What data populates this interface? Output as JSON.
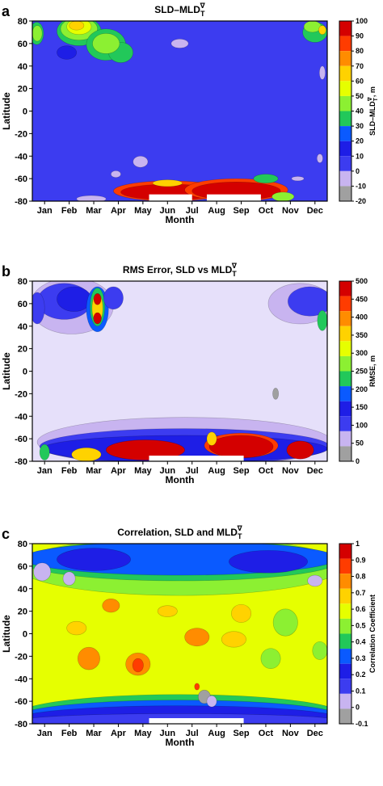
{
  "chart_data": [
    {
      "type": "heatmap",
      "panel_label": "a",
      "title_main": "SLD–MLD",
      "title_sub": "T",
      "title_sup": "∇",
      "xlabel": "Month",
      "ylabel": "Latitude",
      "months": [
        "Jan",
        "Feb",
        "Mar",
        "Apr",
        "May",
        "Jun",
        "Jul",
        "Aug",
        "Sep",
        "Oct",
        "Nov",
        "Dec"
      ],
      "yticks": [
        80,
        60,
        40,
        20,
        0,
        -20,
        -40,
        -60,
        -80
      ],
      "ylim": [
        -80,
        80
      ],
      "colorbar_label": "SLD–MLD",
      "colorbar_label_sub": "T",
      "colorbar_label_sup": "∇",
      "colorbar_unit": ", m",
      "colorbar_ticks": [
        "100",
        "90",
        "80",
        "70",
        "60",
        "50",
        "40",
        "30",
        "20",
        "10",
        "0",
        "-10",
        "-20"
      ],
      "colorbar_colors": [
        "#d40000",
        "#ff3c00",
        "#ff8c00",
        "#ffd200",
        "#e6ff00",
        "#8cf032",
        "#22c85a",
        "#0a5aff",
        "#1e1ee6",
        "#3c3cf0",
        "#c8b4f0",
        "#a0a0a0"
      ],
      "background_color": "#3c3cf0",
      "blobs": [
        {
          "x": 0.18,
          "y": 69,
          "w": 0.28,
          "h": 10,
          "c": "#22c85a"
        },
        {
          "x": 0.2,
          "y": 69,
          "w": 0.2,
          "h": 7,
          "c": "#8cf032"
        },
        {
          "x": 1.9,
          "y": 71,
          "w": 0.9,
          "h": 13,
          "c": "#22c85a"
        },
        {
          "x": 1.9,
          "y": 73,
          "w": 0.75,
          "h": 10,
          "c": "#8cf032"
        },
        {
          "x": 1.9,
          "y": 75,
          "w": 0.5,
          "h": 7,
          "c": "#e6ff00"
        },
        {
          "x": 1.8,
          "y": 76,
          "w": 0.3,
          "h": 4,
          "c": "#ffd200"
        },
        {
          "x": 3.0,
          "y": 59,
          "w": 0.8,
          "h": 14,
          "c": "#22c85a"
        },
        {
          "x": 3.6,
          "y": 52,
          "w": 0.5,
          "h": 9,
          "c": "#22c85a"
        },
        {
          "x": 3.0,
          "y": 60,
          "w": 0.55,
          "h": 9,
          "c": "#8cf032"
        },
        {
          "x": 1.4,
          "y": 52,
          "w": 0.4,
          "h": 6,
          "c": "#1e1ee6"
        },
        {
          "x": 6.0,
          "y": 60,
          "w": 0.35,
          "h": 4,
          "c": "#c8b4f0"
        },
        {
          "x": 11.5,
          "y": 70,
          "w": 0.5,
          "h": 9,
          "c": "#22c85a"
        },
        {
          "x": 11.4,
          "y": 75,
          "w": 0.35,
          "h": 5,
          "c": "#8cf032"
        },
        {
          "x": 11.8,
          "y": 72,
          "w": 0.15,
          "h": 4,
          "c": "#ffd200"
        },
        {
          "x": 11.8,
          "y": 34,
          "w": 0.12,
          "h": 6,
          "c": "#c8b4f0"
        },
        {
          "x": 4.4,
          "y": -45,
          "w": 0.3,
          "h": 5,
          "c": "#c8b4f0"
        },
        {
          "x": 3.4,
          "y": -56,
          "w": 0.2,
          "h": 3,
          "c": "#c8b4f0"
        },
        {
          "x": 2.4,
          "y": -78,
          "w": 0.6,
          "h": 3,
          "c": "#c8b4f0"
        },
        {
          "x": 5.6,
          "y": -71,
          "w": 2.3,
          "h": 9,
          "c": "#ff3c00"
        },
        {
          "x": 5.6,
          "y": -72,
          "w": 2.0,
          "h": 7,
          "c": "#d40000"
        },
        {
          "x": 8.3,
          "y": -70,
          "w": 2.1,
          "h": 10,
          "c": "#ff3c00"
        },
        {
          "x": 8.3,
          "y": -71,
          "w": 1.8,
          "h": 8,
          "c": "#d40000"
        },
        {
          "x": 5.5,
          "y": -64,
          "w": 0.6,
          "h": 3,
          "c": "#ffd200"
        },
        {
          "x": 9.5,
          "y": -60,
          "w": 0.5,
          "h": 4,
          "c": "#22c85a"
        },
        {
          "x": 10.8,
          "y": -60,
          "w": 0.25,
          "h": 2,
          "c": "#c8b4f0"
        },
        {
          "x": 11.7,
          "y": -42,
          "w": 0.12,
          "h": 4,
          "c": "#c8b4f0"
        },
        {
          "x": 10.2,
          "y": -76,
          "w": 0.45,
          "h": 4,
          "c": "#8cf032"
        }
      ],
      "masks": [
        {
          "x0": 4.75,
          "x1": 6.5,
          "y0": -80,
          "y1": -74
        },
        {
          "x0": 7.1,
          "x1": 9.3,
          "y0": -80,
          "y1": -74
        }
      ]
    },
    {
      "type": "heatmap",
      "panel_label": "b",
      "title_main": "RMS Error, SLD vs MLD",
      "title_sub": "T",
      "title_sup": "∇",
      "xlabel": "Month",
      "ylabel": "Latitude",
      "months": [
        "Jan",
        "Feb",
        "Mar",
        "Apr",
        "May",
        "Jun",
        "Jul",
        "Aug",
        "Sep",
        "Oct",
        "Nov",
        "Dec"
      ],
      "yticks": [
        80,
        60,
        40,
        20,
        0,
        -20,
        -40,
        -60,
        -80
      ],
      "ylim": [
        -80,
        80
      ],
      "colorbar_label": "RMSE, m",
      "colorbar_label_sub": "",
      "colorbar_label_sup": "",
      "colorbar_unit": "",
      "colorbar_ticks": [
        "500",
        "450",
        "400",
        "350",
        "300",
        "250",
        "200",
        "150",
        "100",
        "50",
        "0"
      ],
      "colorbar_colors": [
        "#d40000",
        "#ff3c00",
        "#ff8c00",
        "#ffd200",
        "#e6ff00",
        "#8cf032",
        "#22c85a",
        "#0a5aff",
        "#1e1ee6",
        "#3c3cf0",
        "#c8b4f0",
        "#a0a0a0"
      ],
      "background_color": "#e6e0fa",
      "blobs": [
        {
          "x": 1.6,
          "y": 58,
          "w": 1.7,
          "h": 25,
          "c": "#c8b4f0"
        },
        {
          "x": 1.3,
          "y": 62,
          "w": 1.1,
          "h": 16,
          "c": "#3c3cf0"
        },
        {
          "x": 1.7,
          "y": 64,
          "w": 0.7,
          "h": 11,
          "c": "#1e1ee6"
        },
        {
          "x": 2.65,
          "y": 55,
          "w": 0.45,
          "h": 20,
          "c": "#0a5aff"
        },
        {
          "x": 2.65,
          "y": 57,
          "w": 0.3,
          "h": 17,
          "c": "#22c85a"
        },
        {
          "x": 2.65,
          "y": 56,
          "w": 0.22,
          "h": 13,
          "c": "#ffd200"
        },
        {
          "x": 2.65,
          "y": 64,
          "w": 0.15,
          "h": 5,
          "c": "#d40000"
        },
        {
          "x": 2.65,
          "y": 47,
          "w": 0.16,
          "h": 5,
          "c": "#d40000"
        },
        {
          "x": 3.3,
          "y": 65,
          "w": 0.4,
          "h": 10,
          "c": "#3c3cf0"
        },
        {
          "x": 10.9,
          "y": 60,
          "w": 1.3,
          "h": 18,
          "c": "#c8b4f0"
        },
        {
          "x": 11.3,
          "y": 62,
          "w": 0.9,
          "h": 13,
          "c": "#3c3cf0"
        },
        {
          "x": 11.8,
          "y": 45,
          "w": 0.2,
          "h": 9,
          "c": "#22c85a"
        },
        {
          "x": 0.2,
          "y": 56,
          "w": 0.3,
          "h": 14,
          "c": "#3c3cf0"
        },
        {
          "x": 6.2,
          "y": -63,
          "w": 6.0,
          "h": 22,
          "c": "#c8b4f0"
        },
        {
          "x": 6.2,
          "y": -67,
          "w": 5.9,
          "h": 16,
          "c": "#3c3cf0"
        },
        {
          "x": 6.2,
          "y": -69,
          "w": 5.8,
          "h": 12,
          "c": "#1e1ee6"
        },
        {
          "x": 4.6,
          "y": -70,
          "w": 1.6,
          "h": 9,
          "c": "#d40000"
        },
        {
          "x": 8.5,
          "y": -66,
          "w": 1.5,
          "h": 11,
          "c": "#ff3c00"
        },
        {
          "x": 8.5,
          "y": -67,
          "w": 1.3,
          "h": 10,
          "c": "#d40000"
        },
        {
          "x": 10.9,
          "y": -70,
          "w": 0.55,
          "h": 8,
          "c": "#d40000"
        },
        {
          "x": 2.2,
          "y": -74,
          "w": 0.6,
          "h": 6,
          "c": "#ffd200"
        },
        {
          "x": 0.5,
          "y": -72,
          "w": 0.2,
          "h": 7,
          "c": "#22c85a"
        },
        {
          "x": 7.3,
          "y": -60,
          "w": 0.2,
          "h": 6,
          "c": "#ffd200"
        },
        {
          "x": 9.9,
          "y": -20,
          "w": 0.12,
          "h": 5,
          "c": "#a0a0a0"
        }
      ],
      "masks": [
        {
          "x0": 4.75,
          "x1": 8.6,
          "y0": -80,
          "y1": -75
        }
      ]
    },
    {
      "type": "heatmap",
      "panel_label": "c",
      "title_main": "Correlation, SLD and MLD",
      "title_sub": "T",
      "title_sup": "∇",
      "xlabel": "Month",
      "ylabel": "Latitude",
      "months": [
        "Jan",
        "Feb",
        "Mar",
        "Apr",
        "May",
        "Jun",
        "Jul",
        "Aug",
        "Sep",
        "Oct",
        "Nov",
        "Dec"
      ],
      "yticks": [
        80,
        60,
        40,
        20,
        0,
        -20,
        -40,
        -60,
        -80
      ],
      "ylim": [
        -80,
        80
      ],
      "colorbar_label": "Correlation Coefficient",
      "colorbar_label_sub": "",
      "colorbar_label_sup": "",
      "colorbar_unit": "",
      "colorbar_ticks": [
        "1",
        "0.9",
        "0.8",
        "0.7",
        "0.6",
        "0.5",
        "0.4",
        "0.3",
        "0.2",
        "0.1",
        "0",
        "-0.1"
      ],
      "colorbar_colors": [
        "#d40000",
        "#ff3c00",
        "#ff8c00",
        "#ffd200",
        "#e6ff00",
        "#8cf032",
        "#22c85a",
        "#0a5aff",
        "#1e1ee6",
        "#3c3cf0",
        "#c8b4f0",
        "#a0a0a0"
      ],
      "background_color": "#e6ff00",
      "blobs": [
        {
          "x": 6,
          "y": 60,
          "w": 6.6,
          "h": 26,
          "c": "#8cf032"
        },
        {
          "x": 6,
          "y": 65,
          "w": 6.5,
          "h": 18,
          "c": "#22c85a"
        },
        {
          "x": 6,
          "y": 67,
          "w": 6.4,
          "h": 15,
          "c": "#0a5aff"
        },
        {
          "x": 2.5,
          "y": 66,
          "w": 1.5,
          "h": 10,
          "c": "#1e1ee6"
        },
        {
          "x": 9.6,
          "y": 64,
          "w": 1.6,
          "h": 10,
          "c": "#1e1ee6"
        },
        {
          "x": 0.4,
          "y": 55,
          "w": 0.35,
          "h": 8,
          "c": "#c8b4f0"
        },
        {
          "x": 1.5,
          "y": 49,
          "w": 0.25,
          "h": 6,
          "c": "#c8b4f0"
        },
        {
          "x": 11.5,
          "y": 47,
          "w": 0.3,
          "h": 5,
          "c": "#c8b4f0"
        },
        {
          "x": 6,
          "y": -72,
          "w": 6.6,
          "h": 18,
          "c": "#22c85a"
        },
        {
          "x": 6,
          "y": -74,
          "w": 6.6,
          "h": 15,
          "c": "#0a5aff"
        },
        {
          "x": 6,
          "y": -76,
          "w": 6.6,
          "h": 12,
          "c": "#1e1ee6"
        },
        {
          "x": 6,
          "y": -77,
          "w": 6.4,
          "h": 6,
          "c": "#3c3cf0"
        },
        {
          "x": 2.3,
          "y": -22,
          "w": 0.45,
          "h": 10,
          "c": "#ff8c00"
        },
        {
          "x": 4.3,
          "y": -27,
          "w": 0.5,
          "h": 10,
          "c": "#ff8c00"
        },
        {
          "x": 4.3,
          "y": -28,
          "w": 0.22,
          "h": 6,
          "c": "#ff3c00"
        },
        {
          "x": 6.7,
          "y": -3,
          "w": 0.5,
          "h": 8,
          "c": "#ff8c00"
        },
        {
          "x": 8.2,
          "y": -5,
          "w": 0.5,
          "h": 7,
          "c": "#ffd200"
        },
        {
          "x": 8.5,
          "y": 18,
          "w": 0.4,
          "h": 8,
          "c": "#ffd200"
        },
        {
          "x": 1.8,
          "y": 5,
          "w": 0.4,
          "h": 6,
          "c": "#ffd200"
        },
        {
          "x": 5.5,
          "y": 20,
          "w": 0.4,
          "h": 5,
          "c": "#ffd200"
        },
        {
          "x": 10.3,
          "y": 10,
          "w": 0.5,
          "h": 12,
          "c": "#8cf032"
        },
        {
          "x": 9.7,
          "y": -22,
          "w": 0.4,
          "h": 9,
          "c": "#8cf032"
        },
        {
          "x": 3.2,
          "y": 25,
          "w": 0.35,
          "h": 6,
          "c": "#ff8c00"
        },
        {
          "x": 11.7,
          "y": -15,
          "w": 0.3,
          "h": 8,
          "c": "#8cf032"
        },
        {
          "x": 7.0,
          "y": -56,
          "w": 0.25,
          "h": 6,
          "c": "#a0a0a0"
        },
        {
          "x": 7.3,
          "y": -60,
          "w": 0.2,
          "h": 5,
          "c": "#c8b4f0"
        },
        {
          "x": 6.7,
          "y": -47,
          "w": 0.1,
          "h": 3,
          "c": "#ff3c00"
        }
      ],
      "masks": [
        {
          "x0": 4.75,
          "x1": 8.6,
          "y0": -80,
          "y1": -75
        }
      ]
    }
  ]
}
